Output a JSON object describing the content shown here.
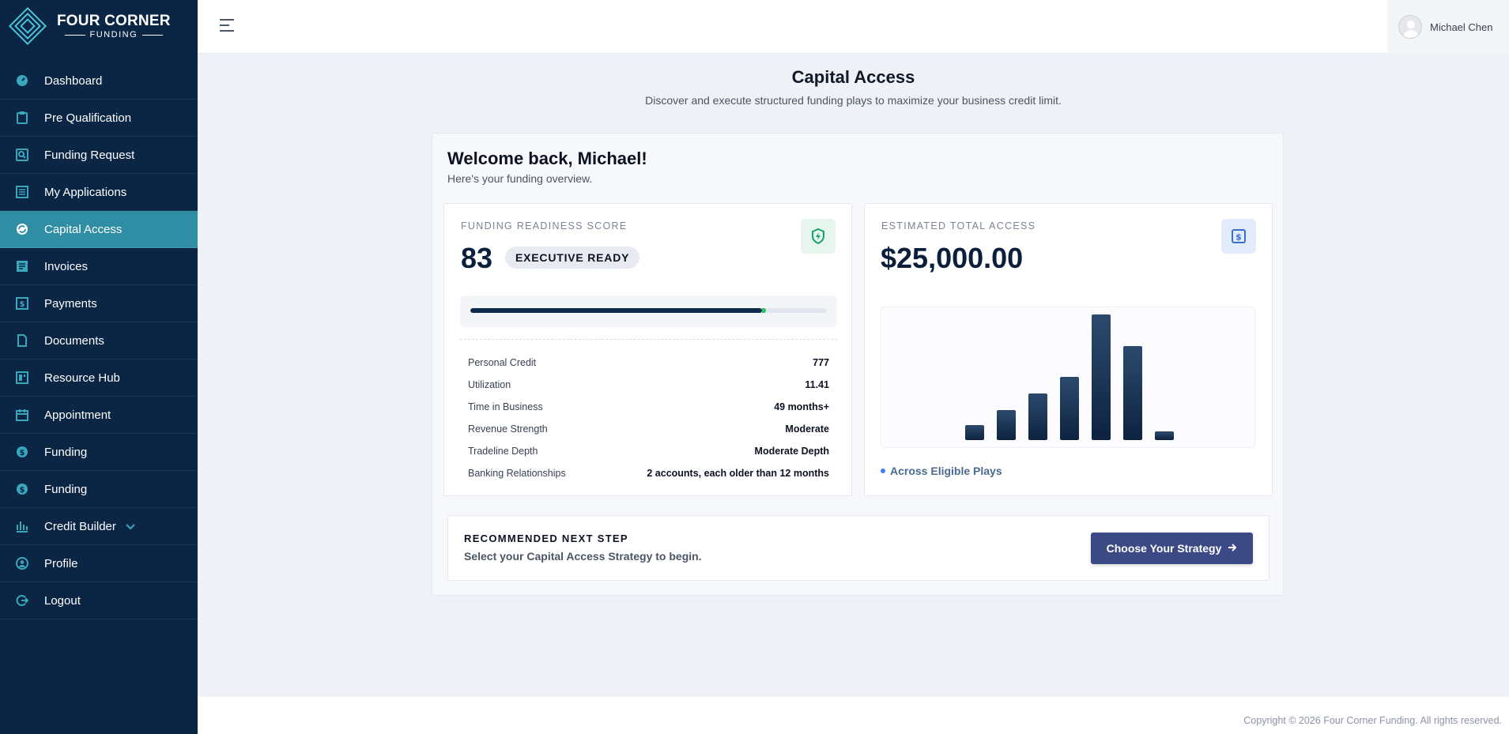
{
  "brand": {
    "line1": "FOUR CORNER",
    "line2": "FUNDING"
  },
  "sidebar": {
    "items": [
      {
        "label": "Dashboard",
        "icon": "dashboard-icon"
      },
      {
        "label": "Pre Qualification",
        "icon": "clipboard-icon"
      },
      {
        "label": "Funding Request",
        "icon": "search-document-icon"
      },
      {
        "label": "My Applications",
        "icon": "list-document-icon"
      },
      {
        "label": "Capital Access",
        "icon": "refresh-circle-icon",
        "active": true
      },
      {
        "label": "Invoices",
        "icon": "invoice-icon"
      },
      {
        "label": "Payments",
        "icon": "dollar-bill-icon"
      },
      {
        "label": "Documents",
        "icon": "document-icon"
      },
      {
        "label": "Resource Hub",
        "icon": "layout-icon"
      },
      {
        "label": "Appointment",
        "icon": "calendar-icon"
      },
      {
        "label": "Funding",
        "icon": "coin-icon"
      },
      {
        "label": "Funding",
        "icon": "coin-icon"
      },
      {
        "label": "Credit Builder",
        "icon": "bank-icon"
      },
      {
        "label": "Profile",
        "icon": "user-circle-icon"
      },
      {
        "label": "Logout",
        "icon": "logout-icon"
      }
    ]
  },
  "header": {
    "user_name": "Michael Chen"
  },
  "page": {
    "title": "Capital Access",
    "subtitle": "Discover and execute structured funding plays to maximize your business credit limit."
  },
  "welcome": {
    "title": "Welcome back, Michael!",
    "subtitle": "Here's your funding overview."
  },
  "readiness": {
    "label": "FUNDING READINESS SCORE",
    "score": "83",
    "badge": "EXECUTIVE READY",
    "progress": 0.83,
    "stats": [
      {
        "label": "Personal Credit",
        "value": "777"
      },
      {
        "label": "Utilization",
        "value": "11.41"
      },
      {
        "label": "Time in Business",
        "value": "49 months+"
      },
      {
        "label": "Revenue Strength",
        "value": "Moderate"
      },
      {
        "label": "Tradeline Depth",
        "value": "Moderate Depth"
      },
      {
        "label": "Banking Relationships",
        "value": "2 accounts, each older than 12 months"
      }
    ]
  },
  "access": {
    "label": "ESTIMATED TOTAL ACCESS",
    "amount": "$25,000.00",
    "legend": "Across Eligible Plays"
  },
  "chart_data": {
    "type": "bar",
    "categories": [
      "",
      "",
      "",
      "",
      "",
      "",
      ""
    ],
    "values": [
      12,
      24,
      37,
      50,
      100,
      75,
      7
    ],
    "title": "",
    "xlabel": "",
    "ylabel": "",
    "ylim": [
      0,
      100
    ],
    "grid": false,
    "colors": {
      "bar_top": "#2c4a6e",
      "bar_bottom": "#0d2240"
    }
  },
  "next_step": {
    "label": "RECOMMENDED NEXT STEP",
    "text": "Select your Capital Access Strategy to begin.",
    "button": "Choose Your Strategy"
  },
  "footer": {
    "copyright": "Copyright © 2026 Four Corner Funding. All rights reserved."
  },
  "colors": {
    "sidebar": "#0b2545",
    "active": "#2f8ea3",
    "accent": "#3b4a85",
    "icon": "#3aa7bd"
  }
}
